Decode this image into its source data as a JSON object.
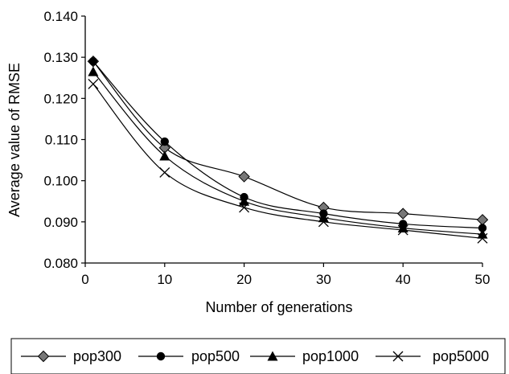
{
  "chart_data": {
    "type": "line",
    "title": "",
    "xlabel": "Number of generations",
    "ylabel": "Average value of RMSE",
    "xlim": [
      0,
      50
    ],
    "ylim": [
      0.08,
      0.14
    ],
    "x_ticks": [
      "0",
      "10",
      "20",
      "30",
      "40",
      "50"
    ],
    "y_ticks": [
      "0.080",
      "0.090",
      "0.100",
      "0.110",
      "0.120",
      "0.130",
      "0.140"
    ],
    "grid": false,
    "legend_position": "bottom",
    "x": [
      1,
      10,
      20,
      30,
      40,
      50
    ],
    "series": [
      {
        "name": "pop300",
        "marker": "diamond",
        "values": [
          0.129,
          0.108,
          0.101,
          0.0935,
          0.092,
          0.0905
        ]
      },
      {
        "name": "pop500",
        "marker": "circle",
        "values": [
          0.129,
          0.1095,
          0.096,
          0.092,
          0.0895,
          0.0885
        ]
      },
      {
        "name": "pop1000",
        "marker": "triangle",
        "values": [
          0.1265,
          0.106,
          0.095,
          0.091,
          0.0885,
          0.087
        ]
      },
      {
        "name": "pop5000",
        "marker": "x",
        "values": [
          0.1235,
          0.102,
          0.0935,
          0.09,
          0.088,
          0.086
        ]
      }
    ]
  }
}
